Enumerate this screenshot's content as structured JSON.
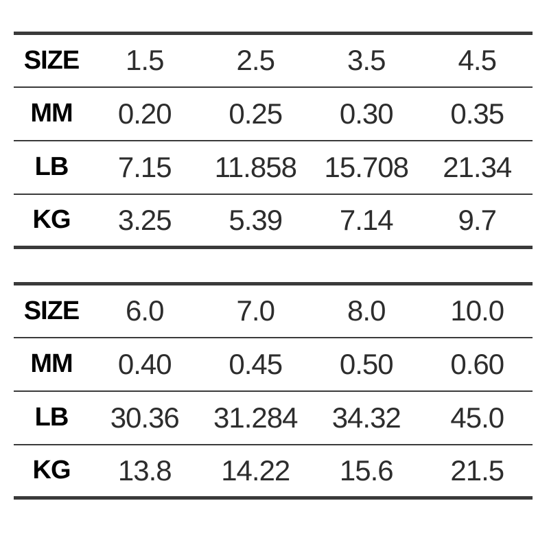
{
  "colors": {
    "line": "#3a3a3a",
    "label_text": "#000000",
    "value_text": "#2d2d2d",
    "background": "#ffffff"
  },
  "chart_data": [
    {
      "type": "table",
      "title": "",
      "rows": [
        {
          "label": "SIZE",
          "values": [
            "1.5",
            "2.5",
            "3.5",
            "4.5"
          ]
        },
        {
          "label": "MM",
          "values": [
            "0.20",
            "0.25",
            "0.30",
            "0.35"
          ]
        },
        {
          "label": "LB",
          "values": [
            "7.15",
            "11.858",
            "15.708",
            "21.34"
          ]
        },
        {
          "label": "KG",
          "values": [
            "3.25",
            "5.39",
            "7.14",
            "9.7"
          ]
        }
      ]
    },
    {
      "type": "table",
      "title": "",
      "rows": [
        {
          "label": "SIZE",
          "values": [
            "6.0",
            "7.0",
            "8.0",
            "10.0"
          ]
        },
        {
          "label": "MM",
          "values": [
            "0.40",
            "0.45",
            "0.50",
            "0.60"
          ]
        },
        {
          "label": "LB",
          "values": [
            "30.36",
            "31.284",
            "34.32",
            "45.0"
          ]
        },
        {
          "label": "KG",
          "values": [
            "13.8",
            "14.22",
            "15.6",
            "21.5"
          ]
        }
      ]
    }
  ]
}
